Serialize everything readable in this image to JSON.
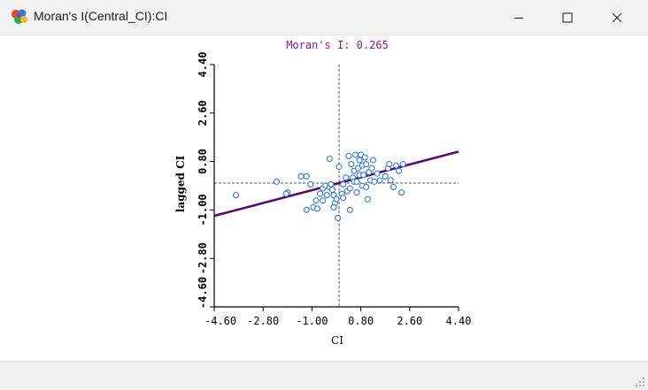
{
  "window": {
    "title": "Moran's I(Central_CI):CI",
    "icon": "geoda-app-icon"
  },
  "colors": {
    "points": "#1f6fdc",
    "regression": "#5a0a6e",
    "title": "#8b1a9a",
    "axis": "#000000",
    "reference": "#555555"
  },
  "chart_data": {
    "type": "scatter",
    "title": "Moran's I: 0.265",
    "xlabel": "CI",
    "ylabel": "lagged CI",
    "xlim": [
      -4.6,
      4.4
    ],
    "ylim": [
      -4.6,
      4.4
    ],
    "x_ticks": [
      "-4.60",
      "-2.80",
      "-1.00",
      "0.80",
      "2.60",
      "4.40"
    ],
    "y_ticks": [
      "-4.60",
      "-2.80",
      "-1.00",
      "0.80",
      "2.60",
      "4.40"
    ],
    "x_tick_values": [
      -4.6,
      -2.8,
      -1.0,
      0.8,
      2.6,
      4.4
    ],
    "y_tick_values": [
      -4.6,
      -2.8,
      -1.0,
      0.8,
      2.6,
      4.4
    ],
    "regression": {
      "slope": 0.265,
      "intercept": 0.0
    },
    "reference_lines": {
      "x": 0.0,
      "y": 0.0
    },
    "points": [
      [
        -3.8,
        -0.45
      ],
      [
        -2.3,
        0.05
      ],
      [
        -1.9,
        -0.35
      ],
      [
        -1.95,
        -0.4
      ],
      [
        -1.4,
        0.25
      ],
      [
        -1.2,
        0.25
      ],
      [
        -1.05,
        -0.05
      ],
      [
        -1.2,
        -1.0
      ],
      [
        -0.95,
        -0.9
      ],
      [
        -0.8,
        -0.95
      ],
      [
        -0.85,
        -0.65
      ],
      [
        -0.6,
        -0.65
      ],
      [
        -0.6,
        -0.2
      ],
      [
        -0.7,
        -0.4
      ],
      [
        -0.5,
        -0.1
      ],
      [
        -0.35,
        -0.15
      ],
      [
        -0.3,
        -0.05
      ],
      [
        -0.25,
        -0.25
      ],
      [
        -0.2,
        -0.45
      ],
      [
        -0.15,
        -0.75
      ],
      [
        -0.2,
        -0.9
      ],
      [
        -0.1,
        -0.6
      ],
      [
        -0.05,
        -1.3
      ],
      [
        -0.35,
        0.9
      ],
      [
        0.0,
        0.6
      ],
      [
        0.1,
        -0.4
      ],
      [
        0.15,
        -0.05
      ],
      [
        0.25,
        0.2
      ],
      [
        0.3,
        -0.3
      ],
      [
        0.35,
        1.0
      ],
      [
        0.4,
        -1.0
      ],
      [
        0.45,
        0.7
      ],
      [
        0.5,
        0.2
      ],
      [
        0.55,
        0.05
      ],
      [
        0.55,
        0.45
      ],
      [
        0.6,
        1.05
      ],
      [
        0.65,
        -0.35
      ],
      [
        0.7,
        0.55
      ],
      [
        0.75,
        0.3
      ],
      [
        0.75,
        0.85
      ],
      [
        0.8,
        1.05
      ],
      [
        0.85,
        -0.1
      ],
      [
        0.85,
        0.65
      ],
      [
        0.9,
        0.3
      ],
      [
        0.95,
        0.95
      ],
      [
        1.0,
        -0.15
      ],
      [
        1.0,
        0.7
      ],
      [
        1.05,
        -0.6
      ],
      [
        1.1,
        0.4
      ],
      [
        1.15,
        0.1
      ],
      [
        1.2,
        0.55
      ],
      [
        1.25,
        0.85
      ],
      [
        1.3,
        0.05
      ],
      [
        1.4,
        0.35
      ],
      [
        1.5,
        0.1
      ],
      [
        1.7,
        0.25
      ],
      [
        1.8,
        0.55
      ],
      [
        1.85,
        0.7
      ],
      [
        1.9,
        0.1
      ],
      [
        2.0,
        -0.15
      ],
      [
        2.1,
        0.65
      ],
      [
        2.2,
        0.45
      ],
      [
        2.3,
        -0.35
      ],
      [
        2.35,
        0.7
      ],
      [
        0.15,
        -0.55
      ],
      [
        0.4,
        -0.2
      ],
      [
        0.65,
        0.05
      ],
      [
        -0.45,
        -0.45
      ]
    ]
  }
}
